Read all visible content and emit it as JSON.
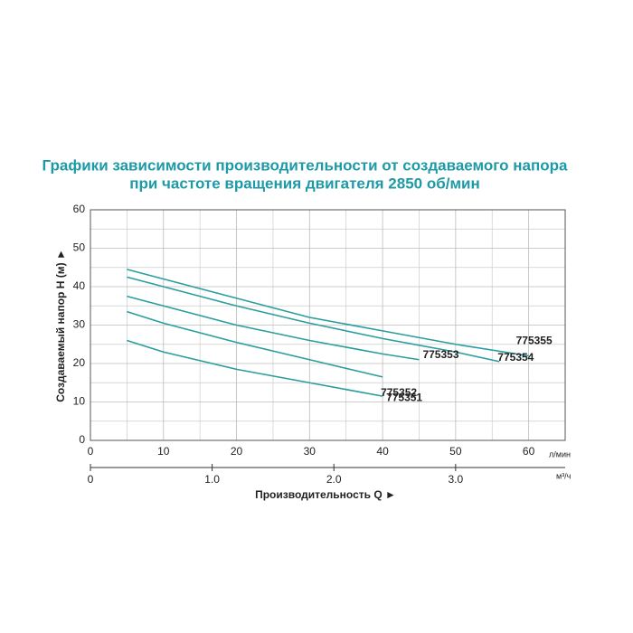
{
  "chart_data": {
    "type": "line",
    "title": "Графики зависимости производительности от создаваемого напора",
    "subtitle": "при частоте вращения двигателя 2850 об/мин",
    "y_label": "Создаваемый напор H (м) ►",
    "x_label": "Производительность Q ►",
    "x_unit": "л/мин",
    "x2_unit": "м³/ч",
    "xlim": [
      0,
      65
    ],
    "xticks": [
      0,
      10,
      20,
      30,
      40,
      50,
      60
    ],
    "x2lim": [
      0,
      3.9
    ],
    "x2ticks": [
      0,
      {
        "value": 1,
        "label": "1.0"
      },
      {
        "value": 2,
        "label": "2.0"
      },
      {
        "value": 3,
        "label": "3.0"
      }
    ],
    "ylim": [
      0,
      60
    ],
    "yticks": [
      0,
      10,
      20,
      30,
      40,
      50,
      60
    ],
    "grid": true,
    "series": [
      {
        "name": "775355",
        "color": "#2a9d9f",
        "x": [
          5,
          10,
          20,
          30,
          40,
          50,
          60
        ],
        "values": [
          44.5,
          42,
          37,
          32,
          28.5,
          25,
          22
        ]
      },
      {
        "name": "775354",
        "color": "#2a9d9f",
        "x": [
          5,
          10,
          20,
          30,
          40,
          50,
          56
        ],
        "values": [
          42.5,
          40,
          35,
          30.5,
          26.5,
          23,
          20.5
        ]
      },
      {
        "name": "775353",
        "color": "#2a9d9f",
        "x": [
          5,
          10,
          20,
          30,
          40,
          45
        ],
        "values": [
          37.5,
          35,
          30,
          26,
          22.5,
          21
        ]
      },
      {
        "name": "775352",
        "color": "#2a9d9f",
        "x": [
          5,
          10,
          20,
          30,
          40
        ],
        "values": [
          33.5,
          30.5,
          25.5,
          21,
          16.5
        ]
      },
      {
        "name": "775351",
        "color": "#2a9d9f",
        "x": [
          5,
          10,
          20,
          30,
          40
        ],
        "values": [
          26,
          23,
          18.5,
          15,
          11.5
        ]
      }
    ]
  }
}
